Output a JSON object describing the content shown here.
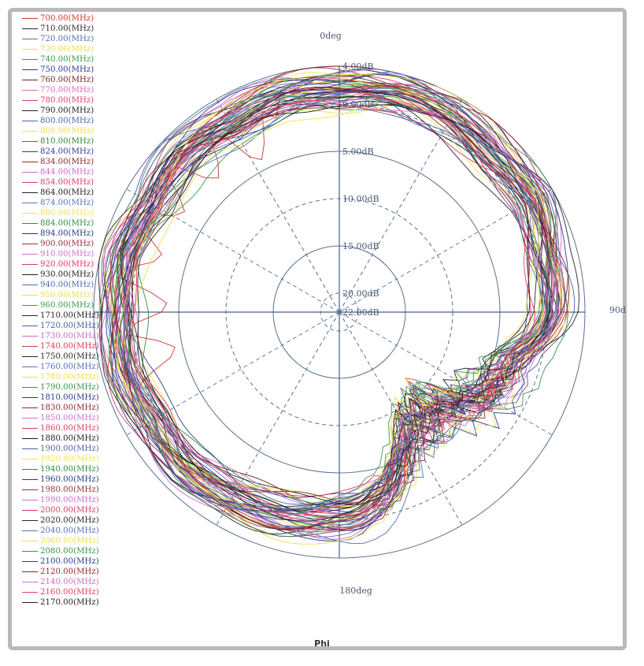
{
  "chart_data": {
    "type": "polar-line",
    "xlabel": "Phi",
    "angle_labels": [
      "0deg",
      "90d",
      "180deg"
    ],
    "radial_unit": "dB",
    "radial_labels": [
      "4.00dB",
      "0.00dB",
      "5.00dB",
      "10.00dB",
      "15.00dB",
      "20.00dB",
      "22.00dB"
    ],
    "rlim": [
      -22,
      4
    ],
    "grid": true,
    "legend": "left",
    "series_shape": [
      [
        0,
        1.5
      ],
      [
        15,
        2.0
      ],
      [
        30,
        1.8
      ],
      [
        45,
        1.2
      ],
      [
        60,
        1.6
      ],
      [
        75,
        0.6
      ],
      [
        90,
        0.4
      ],
      [
        105,
        -1.5
      ],
      [
        120,
        -1.0
      ],
      [
        135,
        -3.5
      ],
      [
        150,
        -4.0
      ],
      [
        165,
        -1.0
      ],
      [
        180,
        -0.5
      ],
      [
        195,
        0.2
      ],
      [
        210,
        0.5
      ],
      [
        225,
        1.0
      ],
      [
        240,
        0.8
      ],
      [
        255,
        1.5
      ],
      [
        270,
        1.2
      ],
      [
        285,
        1.6
      ],
      [
        300,
        0.8
      ],
      [
        315,
        1.4
      ],
      [
        330,
        1.0
      ],
      [
        345,
        1.6
      ]
    ],
    "series": [
      {
        "name": "700.00(MHz)",
        "color": "#d9302f"
      },
      {
        "name": "710.00(MHz)",
        "color": "#2b2b2b"
      },
      {
        "name": "720.00(MHz)",
        "color": "#5b6fb0"
      },
      {
        "name": "730.00(MHz)",
        "color": "#e8e04a"
      },
      {
        "name": "740.00(MHz)",
        "color": "#3f9a4a"
      },
      {
        "name": "750.00(MHz)",
        "color": "#2e3a8c"
      },
      {
        "name": "760.00(MHz)",
        "color": "#7a1e1e"
      },
      {
        "name": "770.00(MHz)",
        "color": "#d36fc6"
      },
      {
        "name": "780.00(MHz)",
        "color": "#e0406a"
      },
      {
        "name": "790.00(MHz)",
        "color": "#222222"
      },
      {
        "name": "800.00(MHz)",
        "color": "#4a66a8"
      },
      {
        "name": "808.00(MHz)",
        "color": "#ece24f"
      },
      {
        "name": "810.00(MHz)",
        "color": "#2f8a3e"
      },
      {
        "name": "824.00(MHz)",
        "color": "#2c3f93"
      },
      {
        "name": "834.00(MHz)",
        "color": "#8a2a2a"
      },
      {
        "name": "844.00(MHz)",
        "color": "#c86ad0"
      },
      {
        "name": "854.00(MHz)",
        "color": "#dd3a6e"
      },
      {
        "name": "864.00(MHz)",
        "color": "#1f1f1f"
      },
      {
        "name": "874.00(MHz)",
        "color": "#5a76bd"
      },
      {
        "name": "880.00(MHz)",
        "color": "#f0e356"
      },
      {
        "name": "884.00(MHz)",
        "color": "#2f8f43"
      },
      {
        "name": "894.00(MHz)",
        "color": "#27368a"
      },
      {
        "name": "900.00(MHz)",
        "color": "#9a2f3a"
      },
      {
        "name": "910.00(MHz)",
        "color": "#d070cc"
      },
      {
        "name": "920.00(MHz)",
        "color": "#e03a5e"
      },
      {
        "name": "930.00(MHz)",
        "color": "#202020"
      },
      {
        "name": "940.00(MHz)",
        "color": "#5468ae"
      },
      {
        "name": "950.00(MHz)",
        "color": "#eade4c"
      },
      {
        "name": "960.00(MHz)",
        "color": "#3a9a4c"
      },
      {
        "name": "1710.00(MHz)",
        "color": "#242424"
      },
      {
        "name": "1720.00(MHz)",
        "color": "#4a5f9e"
      },
      {
        "name": "1730.00(MHz)",
        "color": "#c872c7"
      },
      {
        "name": "1740.00(MHz)",
        "color": "#d8385a"
      },
      {
        "name": "1750.00(MHz)",
        "color": "#2a2a2a"
      },
      {
        "name": "1760.00(MHz)",
        "color": "#5671b4"
      },
      {
        "name": "1780.00(MHz)",
        "color": "#ede14d"
      },
      {
        "name": "1790.00(MHz)",
        "color": "#37924a"
      },
      {
        "name": "1810.00(MHz)",
        "color": "#2b3990"
      },
      {
        "name": "1830.00(MHz)",
        "color": "#8f2733"
      },
      {
        "name": "1850.00(MHz)",
        "color": "#cf6fd0"
      },
      {
        "name": "1860.00(MHz)",
        "color": "#df3f62"
      },
      {
        "name": "1880.00(MHz)",
        "color": "#1e1e1e"
      },
      {
        "name": "1900.00(MHz)",
        "color": "#4d63a6"
      },
      {
        "name": "1920.00(MHz)",
        "color": "#efe454"
      },
      {
        "name": "1940.00(MHz)",
        "color": "#2f8d40"
      },
      {
        "name": "1960.00(MHz)",
        "color": "#2a388d"
      },
      {
        "name": "1980.00(MHz)",
        "color": "#963038"
      },
      {
        "name": "1990.00(MHz)",
        "color": "#cc6dcc"
      },
      {
        "name": "2000.00(MHz)",
        "color": "#dc3b60"
      },
      {
        "name": "2020.00(MHz)",
        "color": "#262626"
      },
      {
        "name": "2040.00(MHz)",
        "color": "#5870b6"
      },
      {
        "name": "2060.00(MHz)",
        "color": "#ebdf4e"
      },
      {
        "name": "2080.00(MHz)",
        "color": "#38964a"
      },
      {
        "name": "2100.00(MHz)",
        "color": "#2c3a8e"
      },
      {
        "name": "2120.00(MHz)",
        "color": "#8c2a30"
      },
      {
        "name": "2140.00(MHz)",
        "color": "#ca6ecb"
      },
      {
        "name": "2160.00(MHz)",
        "color": "#e0405e"
      },
      {
        "name": "2170.00(MHz)",
        "color": "#232323"
      }
    ]
  }
}
